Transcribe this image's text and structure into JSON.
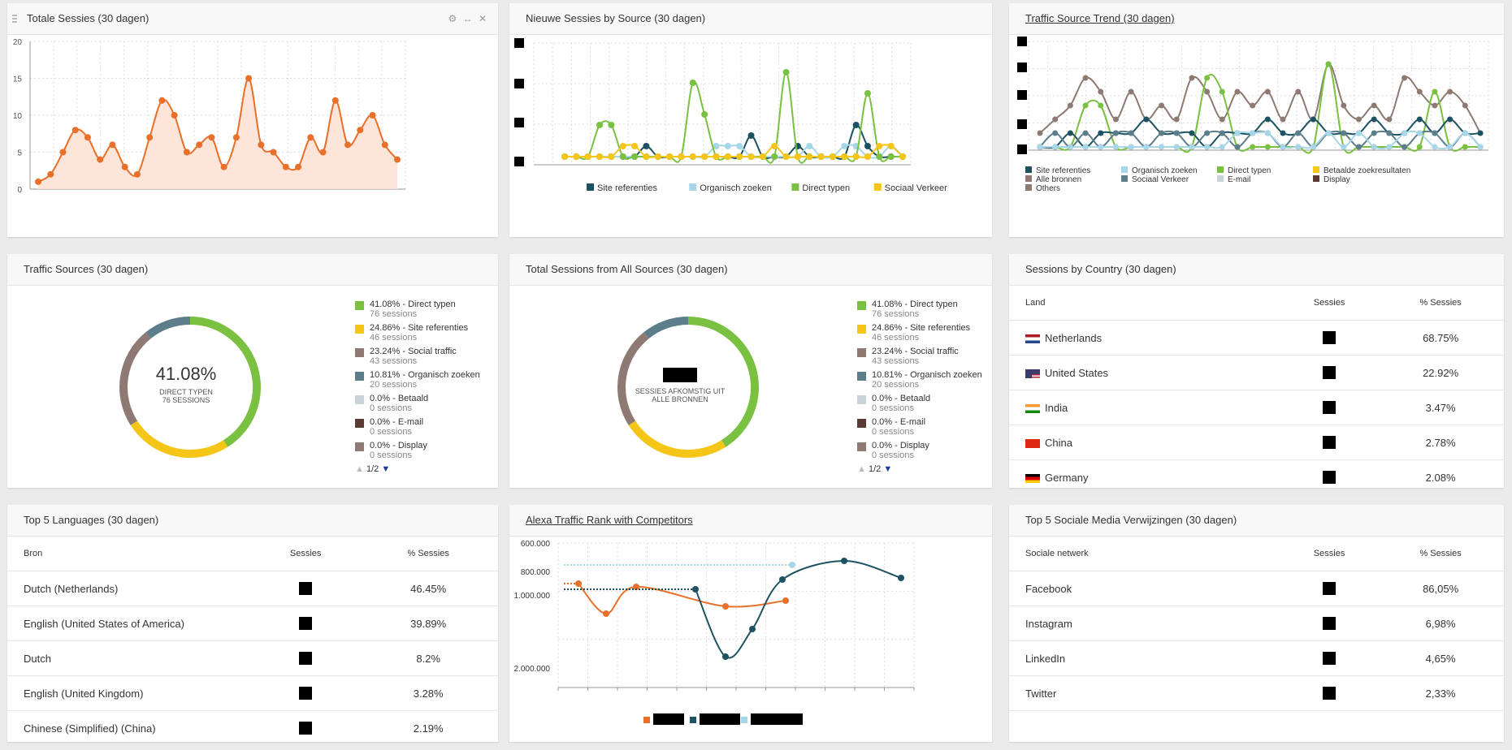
{
  "colors": {
    "orange": "#e8702a",
    "green": "#7ac142",
    "yellow": "#f5c518",
    "brown": "#8e7a72",
    "teal": "#1d5263",
    "slate": "#5c7d8a",
    "lightblue": "#a6d6e8",
    "lightgrey": "#c8d3da",
    "darkbrown": "#5a3a32"
  },
  "w1": {
    "title": "Totale Sessies (30 dagen)",
    "icons": [
      "gear-icon",
      "resize-icon",
      "close-icon"
    ],
    "chart_data": {
      "type": "area",
      "title": "Totale Sessies (30 dagen)",
      "ylim": [
        0,
        20
      ],
      "yticks": [
        "20",
        "15",
        "10",
        "5",
        "0"
      ],
      "values": [
        1,
        2,
        5,
        8,
        7,
        4,
        6,
        3,
        2,
        7,
        12,
        10,
        5,
        6,
        7,
        3,
        7,
        15,
        6,
        5,
        3,
        3,
        7,
        5,
        12,
        6,
        8,
        10,
        6,
        4
      ]
    }
  },
  "w2": {
    "title": "Nieuwe Sessies by Source (30 dagen)",
    "chart_data": {
      "type": "line",
      "series": [
        {
          "name": "Site referenties",
          "values": [
            0,
            0,
            0,
            0,
            0,
            0,
            0,
            1,
            0,
            0,
            0,
            0,
            0,
            0,
            0,
            0,
            2,
            0,
            0,
            0,
            1,
            0,
            0,
            0,
            0,
            3,
            1,
            0,
            0,
            0
          ]
        },
        {
          "name": "Organisch zoeken",
          "values": [
            0,
            0,
            0,
            0,
            0,
            0,
            0,
            0,
            0,
            0,
            0,
            0,
            0,
            1,
            1,
            1,
            0,
            0,
            0,
            0,
            0,
            1,
            0,
            0,
            1,
            1,
            0,
            0,
            1,
            0
          ]
        },
        {
          "name": "Direct typen",
          "values": [
            0,
            0,
            0,
            3,
            3,
            0,
            0,
            0,
            0,
            0,
            0,
            7,
            4,
            0,
            0,
            0,
            0,
            0,
            0,
            8,
            0,
            0,
            0,
            0,
            0,
            0,
            6,
            0,
            0,
            0
          ]
        },
        {
          "name": "Sociaal Verkeer",
          "values": [
            0,
            0,
            0,
            0,
            0,
            1,
            1,
            0,
            0,
            0,
            0,
            0,
            0,
            0,
            0,
            0,
            0,
            0,
            1,
            0,
            0,
            0,
            0,
            0,
            0,
            0,
            0,
            1,
            1,
            0
          ]
        }
      ]
    },
    "legend": [
      "Site referenties",
      "Organisch zoeken",
      "Direct typen",
      "Sociaal Verkeer"
    ]
  },
  "w3": {
    "title": "Traffic Source Trend (30 dagen)",
    "chart_data": {
      "type": "line",
      "series": [
        {
          "name": "Alle bronnen",
          "values": [
            1,
            2,
            3,
            5,
            4,
            2,
            4,
            2,
            3,
            2,
            5,
            4,
            2,
            4,
            3,
            4,
            2,
            4,
            2,
            6,
            3,
            2,
            3,
            2,
            5,
            4,
            3,
            4,
            3,
            1
          ]
        },
        {
          "name": "Direct typen",
          "values": [
            0,
            0,
            0,
            3,
            3,
            0,
            0,
            0,
            0,
            0,
            0,
            5,
            4,
            0,
            0,
            0,
            0,
            0,
            0,
            6,
            0,
            0,
            0,
            0,
            0,
            0,
            4,
            0,
            0,
            0
          ]
        },
        {
          "name": "Site referenties",
          "values": [
            0,
            0,
            1,
            0,
            1,
            1,
            1,
            2,
            1,
            1,
            1,
            0,
            1,
            1,
            1,
            2,
            1,
            1,
            2,
            1,
            1,
            1,
            2,
            1,
            1,
            2,
            1,
            2,
            1,
            1
          ]
        },
        {
          "name": "Sociaal Verkeer",
          "values": [
            0,
            1,
            0,
            1,
            0,
            1,
            1,
            0,
            1,
            1,
            0,
            1,
            1,
            0,
            1,
            1,
            0,
            1,
            0,
            1,
            1,
            0,
            1,
            1,
            0,
            1,
            1,
            0,
            1,
            0
          ]
        },
        {
          "name": "Organisch zoeken",
          "values": [
            0,
            0,
            0,
            0,
            0,
            0,
            0,
            0,
            0,
            0,
            0,
            0,
            0,
            1,
            1,
            1,
            0,
            0,
            0,
            1,
            0,
            1,
            0,
            0,
            1,
            1,
            0,
            0,
            1,
            0
          ]
        }
      ]
    },
    "legend": [
      "Site referenties",
      "Organisch zoeken",
      "Direct typen",
      "Betaalde zoekresultaten",
      "Alle bronnen",
      "Sociaal Verkeer",
      "E-mail",
      "Display",
      "Others"
    ]
  },
  "w4": {
    "title": "Traffic Sources (30 dagen)",
    "center_value": "41.08%",
    "center_l1": "DIRECT TYPEN",
    "center_l2": "76 SESSIONS",
    "chart_data": {
      "type": "pie",
      "slices": [
        {
          "label": "Direct typen",
          "value": 41.08
        },
        {
          "label": "Site referenties",
          "value": 24.86
        },
        {
          "label": "Social traffic",
          "value": 23.24
        },
        {
          "label": "Organisch zoeken",
          "value": 10.81
        }
      ]
    },
    "legend": [
      {
        "l1": "41.08% - Direct typen",
        "l2": "76 sessions"
      },
      {
        "l1": "24.86% - Site referenties",
        "l2": "46 sessions"
      },
      {
        "l1": "23.24% - Social traffic",
        "l2": "43 sessions"
      },
      {
        "l1": "10.81% - Organisch zoeken",
        "l2": "20 sessions"
      },
      {
        "l1": "0.0% - Betaald",
        "l2": "0 sessions"
      },
      {
        "l1": "0.0% - E-mail",
        "l2": "0 sessions"
      },
      {
        "l1": "0.0% - Display",
        "l2": "0 sessions"
      }
    ],
    "pager": "1/2"
  },
  "w5": {
    "title": "Total Sessions from All Sources (30 dagen)",
    "center_l1": "SESSIES AFKOMSTIG UIT",
    "center_l2": "ALLE BRONNEN",
    "legend": [
      {
        "l1": "41.08% - Direct typen",
        "l2": "76 sessions"
      },
      {
        "l1": "24.86% - Site referenties",
        "l2": "46 sessions"
      },
      {
        "l1": "23.24% - Social traffic",
        "l2": "43 sessions"
      },
      {
        "l1": "10.81% - Organisch zoeken",
        "l2": "20 sessions"
      },
      {
        "l1": "0.0% - Betaald",
        "l2": "0 sessions"
      },
      {
        "l1": "0.0% - E-mail",
        "l2": "0 sessions"
      },
      {
        "l1": "0.0% - Display",
        "l2": "0 sessions"
      }
    ],
    "pager": "1/2"
  },
  "w6": {
    "title": "Sessions by Country (30 dagen)",
    "headers": [
      "Land",
      "Sessies",
      "% Sessies"
    ],
    "rows": [
      {
        "name": "Netherlands",
        "pct": "68.75%"
      },
      {
        "name": "United States",
        "pct": "22.92%"
      },
      {
        "name": "India",
        "pct": "3.47%"
      },
      {
        "name": "China",
        "pct": "2.78%"
      },
      {
        "name": "Germany",
        "pct": "2.08%"
      }
    ]
  },
  "w7": {
    "title": "Top 5 Languages (30 dagen)",
    "headers": [
      "Bron",
      "Sessies",
      "% Sessies"
    ],
    "rows": [
      {
        "name": "Dutch (Netherlands)",
        "pct": "46.45%"
      },
      {
        "name": "English (United States of America)",
        "pct": "39.89%"
      },
      {
        "name": "Dutch",
        "pct": "8.2%"
      },
      {
        "name": "English (United Kingdom)",
        "pct": "3.28%"
      },
      {
        "name": "Chinese (Simplified) (China)",
        "pct": "2.19%"
      }
    ]
  },
  "w8": {
    "title": "Alexa Traffic Rank with Competitors",
    "chart_data": {
      "type": "line",
      "title": "Alexa Traffic Rank with Competitors",
      "yticks": [
        "600.000",
        "800.000",
        "1.000.000",
        "2.000.000"
      ]
    }
  },
  "w9": {
    "title": "Top 5 Sociale Media Verwijzingen (30 dagen)",
    "headers": [
      "Sociale netwerk",
      "Sessies",
      "% Sessies"
    ],
    "rows": [
      {
        "name": "Facebook",
        "pct": "86,05%"
      },
      {
        "name": "Instagram",
        "pct": "6,98%"
      },
      {
        "name": "LinkedIn",
        "pct": "4,65%"
      },
      {
        "name": "Twitter",
        "pct": "2,33%"
      }
    ]
  }
}
